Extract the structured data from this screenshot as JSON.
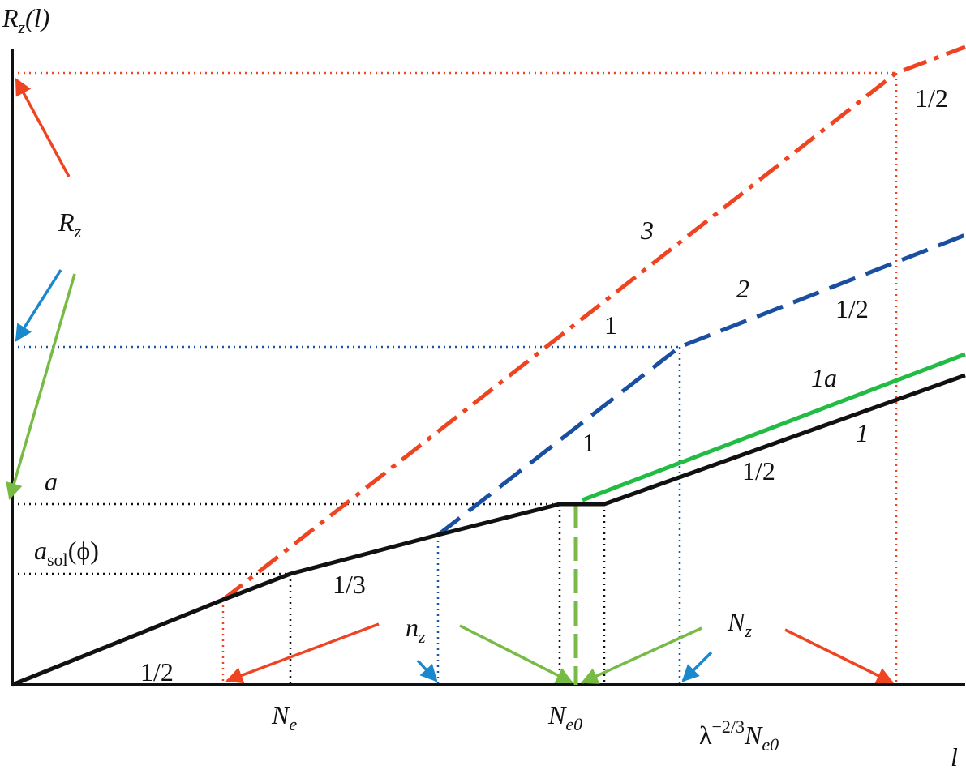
{
  "axes": {
    "y_label": {
      "main": "R",
      "sub": "z",
      "tail": "(l)"
    },
    "x_label": "l"
  },
  "y_marks": {
    "rz": {
      "main": "R",
      "sub": "z"
    },
    "a": "a",
    "a_sol": {
      "main": "a",
      "sub": "sol",
      "tail": "(ϕ)"
    }
  },
  "x_marks": {
    "ne": {
      "main": "N",
      "sub": "e"
    },
    "ne0": {
      "main": "N",
      "sub": "e0"
    },
    "lambda_ne0": {
      "pre": "λ",
      "sup": "−2/3",
      "main": "N",
      "sub": "e0"
    },
    "nz": {
      "main": "n",
      "sub": "z"
    },
    "Nz": {
      "main": "N",
      "sub": "z"
    }
  },
  "slopes": {
    "s1": "1/2",
    "s2": "1/3",
    "s3": "1",
    "s4": "1",
    "s5": "1/2",
    "s6": "1/2",
    "s7": "1/2"
  },
  "curves": {
    "c3": "3",
    "c2": "2",
    "c1a": "1a",
    "c1": "1"
  }
}
